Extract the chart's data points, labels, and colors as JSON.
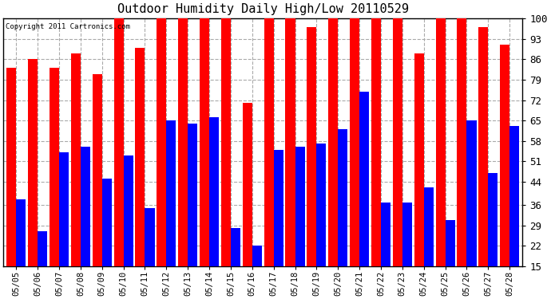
{
  "title": "Outdoor Humidity Daily High/Low 20110529",
  "copyright": "Copyright 2011 Cartronics.com",
  "dates": [
    "05/05",
    "05/06",
    "05/07",
    "05/08",
    "05/09",
    "05/10",
    "05/11",
    "05/12",
    "05/13",
    "05/14",
    "05/15",
    "05/16",
    "05/17",
    "05/18",
    "05/19",
    "05/20",
    "05/21",
    "05/22",
    "05/23",
    "05/24",
    "05/25",
    "05/26",
    "05/27",
    "05/28"
  ],
  "highs": [
    83,
    86,
    83,
    88,
    81,
    100,
    90,
    100,
    100,
    100,
    100,
    71,
    100,
    100,
    97,
    100,
    100,
    100,
    100,
    88,
    100,
    100,
    97,
    91
  ],
  "lows": [
    38,
    27,
    54,
    56,
    45,
    53,
    35,
    65,
    64,
    66,
    28,
    22,
    55,
    56,
    57,
    62,
    75,
    37,
    37,
    42,
    31,
    65,
    47,
    63
  ],
  "high_color": "#ff0000",
  "low_color": "#0000ff",
  "bg_color": "#ffffff",
  "yticks": [
    15,
    22,
    29,
    36,
    44,
    51,
    58,
    65,
    72,
    79,
    86,
    93,
    100
  ],
  "ymin": 15,
  "ymax": 100,
  "grid_color": "#aaaaaa",
  "bar_width": 0.45
}
